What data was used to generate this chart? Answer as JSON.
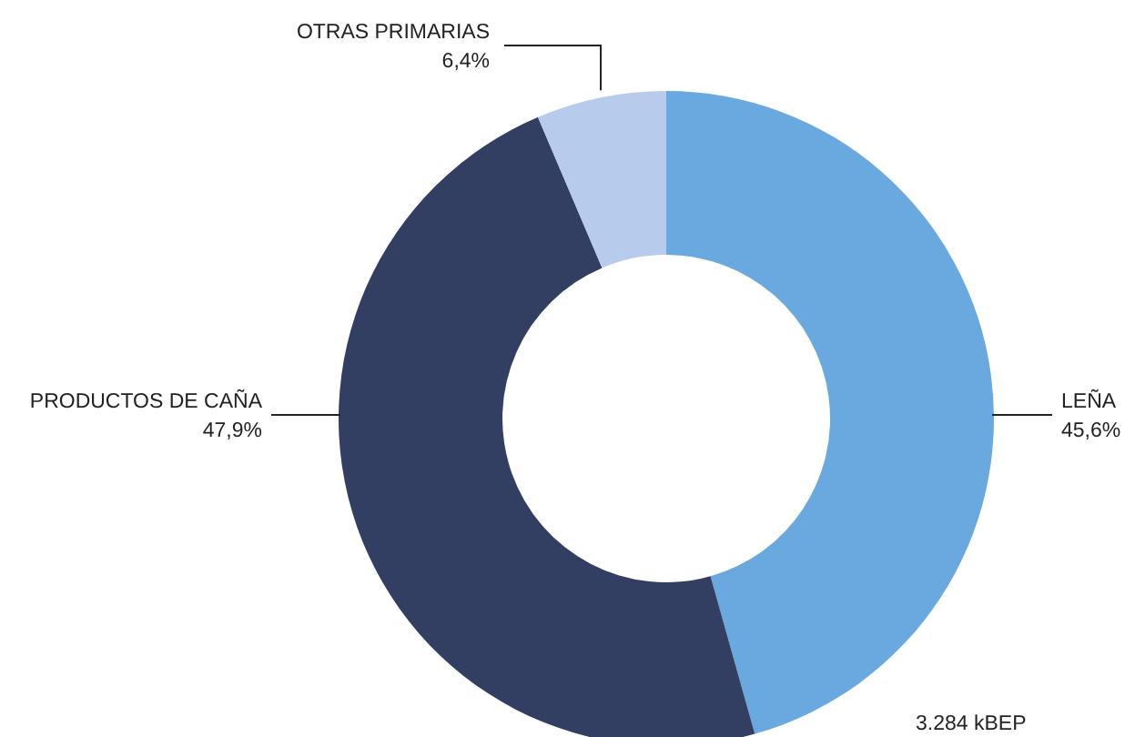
{
  "chart_data": {
    "type": "donut",
    "categories": [
      "LEÑA",
      "PRODUCTOS DE CAÑA",
      "OTRAS PRIMARIAS"
    ],
    "values": [
      45.6,
      47.9,
      6.4
    ],
    "colors": [
      "#6aa9df",
      "#333f62",
      "#b7cbec"
    ],
    "value_labels": [
      "45,6%",
      "47,9%",
      "6,4%"
    ],
    "annotations": [
      "3.284 kBEP"
    ]
  }
}
